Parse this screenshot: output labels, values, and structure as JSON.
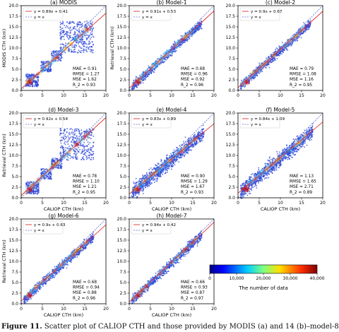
{
  "chart_data": [
    {
      "type": "scatter",
      "title": "(a) MODIS",
      "xlabel": "",
      "ylabel": "MODIS CTH (km)",
      "xlim": [
        0,
        20
      ],
      "ylim": [
        0,
        20
      ],
      "xticks": [
        "0",
        "5",
        "10",
        "15",
        "20"
      ],
      "yticks": [
        "0.0",
        "2.5",
        "5.0",
        "7.5",
        "10.0",
        "12.5",
        "15.0",
        "17.5",
        "20.0"
      ],
      "legend": {
        "position": "top-left",
        "entries": [
          "y = 0.89x + 0.41",
          "y = x"
        ]
      },
      "fit": {
        "slope": 0.89,
        "intercept": 0.41
      },
      "stats": [
        "MAE = 0.91",
        "RMSE = 1.27",
        "MSE = 1.62",
        "R_2 = 0.93"
      ],
      "density_pattern": "steps"
    },
    {
      "type": "scatter",
      "title": "(b) Model-1",
      "xlabel": "",
      "ylabel": "Retrieval CTH (km)",
      "xlim": [
        0,
        20
      ],
      "ylim": [
        0,
        20
      ],
      "xticks": [
        "0",
        "5",
        "10",
        "15",
        "20"
      ],
      "yticks": [
        "0.0",
        "2.5",
        "5.0",
        "7.5",
        "10.0",
        "12.5",
        "15.0",
        "17.5",
        "20.0"
      ],
      "legend": {
        "position": "top-left",
        "entries": [
          "y = 0.91x + 0.53",
          "y = x"
        ]
      },
      "fit": {
        "slope": 0.91,
        "intercept": 0.53
      },
      "stats": [
        "MAE = 0.68",
        "RMSE = 0.96",
        "MSE = 0.92",
        "R_2 = 0.96"
      ],
      "density_pattern": "diagonal"
    },
    {
      "type": "scatter",
      "title": "(c) Model-2",
      "xlabel": "",
      "ylabel": "",
      "xlim": [
        0,
        20
      ],
      "ylim": [
        0,
        20
      ],
      "xticks": [
        "0",
        "5",
        "10",
        "15",
        "20"
      ],
      "yticks": [
        "0.0",
        "2.5",
        "5.0",
        "7.5",
        "10.0",
        "12.5",
        "15.0",
        "17.5",
        "20.0"
      ],
      "legend": {
        "position": "top-left",
        "entries": [
          "y = 0.9x + 0.67",
          "y = x"
        ]
      },
      "fit": {
        "slope": 0.9,
        "intercept": 0.67
      },
      "stats": [
        "MAE = 0.79",
        "RMSE = 1.08",
        "MSE = 1.16",
        "R_2 = 0.95"
      ],
      "density_pattern": "diagonal"
    },
    {
      "type": "scatter",
      "title": "(d) Model-3",
      "xlabel": "CALIOP CTH (km)",
      "ylabel": "Retrieval CTH (km)",
      "xlim": [
        0,
        20
      ],
      "ylim": [
        0,
        20
      ],
      "xticks": [
        "0",
        "5",
        "10",
        "15",
        "20"
      ],
      "yticks": [
        "0.0",
        "2.5",
        "5.0",
        "7.5",
        "10.0",
        "12.5",
        "15.0",
        "17.5",
        "20.0"
      ],
      "legend": {
        "position": "top-left",
        "entries": [
          "y = 0.92x + 0.54",
          "y = x"
        ]
      },
      "fit": {
        "slope": 0.92,
        "intercept": 0.54
      },
      "stats": [
        "MAE = 0.78",
        "RMSE = 1.10",
        "MSE = 1.21",
        "R_2 = 0.95"
      ],
      "density_pattern": "steps"
    },
    {
      "type": "scatter",
      "title": "(e) Model-4",
      "xlabel": "CALIOP CTH (km)",
      "ylabel": "",
      "xlim": [
        0,
        20
      ],
      "ylim": [
        0,
        20
      ],
      "xticks": [
        "0",
        "5",
        "10",
        "15",
        "20"
      ],
      "yticks": [
        "0.0",
        "2.5",
        "5.0",
        "7.5",
        "10.0",
        "12.5",
        "15.0",
        "17.5",
        "20.0"
      ],
      "legend": {
        "position": "top-left",
        "entries": [
          "y = 0.83x + 0.89",
          "y = x"
        ]
      },
      "fit": {
        "slope": 0.83,
        "intercept": 0.89
      },
      "stats": [
        "MAE = 0.90",
        "RMSE = 1.29",
        "MSE = 1.67",
        "R_2 = 0.93"
      ],
      "density_pattern": "broad"
    },
    {
      "type": "scatter",
      "title": "(f) Model-5",
      "xlabel": "CALIOP CTH (km)",
      "ylabel": "",
      "xlim": [
        0,
        20
      ],
      "ylim": [
        0,
        20
      ],
      "xticks": [
        "0",
        "5",
        "10",
        "15",
        "20"
      ],
      "yticks": [
        "0.0",
        "2.5",
        "5.0",
        "7.5",
        "10.0",
        "12.5",
        "15.0",
        "17.5",
        "20.0"
      ],
      "legend": {
        "position": "top-left",
        "entries": [
          "y = 0.84x + 1.09",
          "y = x"
        ]
      },
      "fit": {
        "slope": 0.84,
        "intercept": 1.09
      },
      "stats": [
        "MAE = 1.13",
        "RMSE = 1.65",
        "MSE = 2.71",
        "R_2 = 0.89"
      ],
      "density_pattern": "broad"
    },
    {
      "type": "scatter",
      "title": "(g) Model-6",
      "xlabel": "CALIOP CTH (km)",
      "ylabel": "Retrieval CTH (km)",
      "xlim": [
        0,
        20
      ],
      "ylim": [
        0,
        20
      ],
      "xticks": [
        "0",
        "5",
        "10",
        "15",
        "20"
      ],
      "yticks": [
        "0.0",
        "2.5",
        "5.0",
        "7.5",
        "10.0",
        "12.5",
        "15.0",
        "17.5",
        "20.0"
      ],
      "legend": {
        "position": "top-left",
        "entries": [
          "y = 0.9x + 0.63",
          "y = x"
        ]
      },
      "fit": {
        "slope": 0.9,
        "intercept": 0.63
      },
      "stats": [
        "MAE = 0.68",
        "RMSE = 0.94",
        "MSE = 0.88",
        "R_2 = 0.96"
      ],
      "density_pattern": "diagonal"
    },
    {
      "type": "scatter",
      "title": "(h) Model-7",
      "xlabel": "CALIOP CTH (km)",
      "ylabel": "",
      "xlim": [
        0,
        20
      ],
      "ylim": [
        0,
        20
      ],
      "xticks": [
        "0",
        "5",
        "10",
        "15",
        "20"
      ],
      "yticks": [
        "0.0",
        "2.5",
        "5.0",
        "7.5",
        "10.0",
        "12.5",
        "15.0",
        "17.5",
        "20.0"
      ],
      "legend": {
        "position": "top-left",
        "entries": [
          "y = 0.94x + 0.42",
          "y = x"
        ]
      },
      "fit": {
        "slope": 0.94,
        "intercept": 0.42
      },
      "stats": [
        "MAE = 0.66",
        "RMSE = 0.93",
        "MSE = 0.87",
        "R_2 = 0.97"
      ],
      "density_pattern": "diagonal"
    }
  ],
  "colorbar": {
    "ticks": [
      "0",
      "10,000",
      "20,000",
      "30,000",
      "40,000"
    ],
    "range": [
      0,
      40000
    ],
    "label": "The number of data",
    "colormap": "jet"
  },
  "colors": {
    "fit_line": "#e03030",
    "identity_line": "#5a6bd8",
    "dots": "#2a44d8",
    "high_density": "#cc1010"
  },
  "caption": {
    "prefix": "Figure 11.",
    "text": "Scatter plot of CALIOP CTH and those provided by MODIS (a) and 14 (b)–model-8"
  }
}
